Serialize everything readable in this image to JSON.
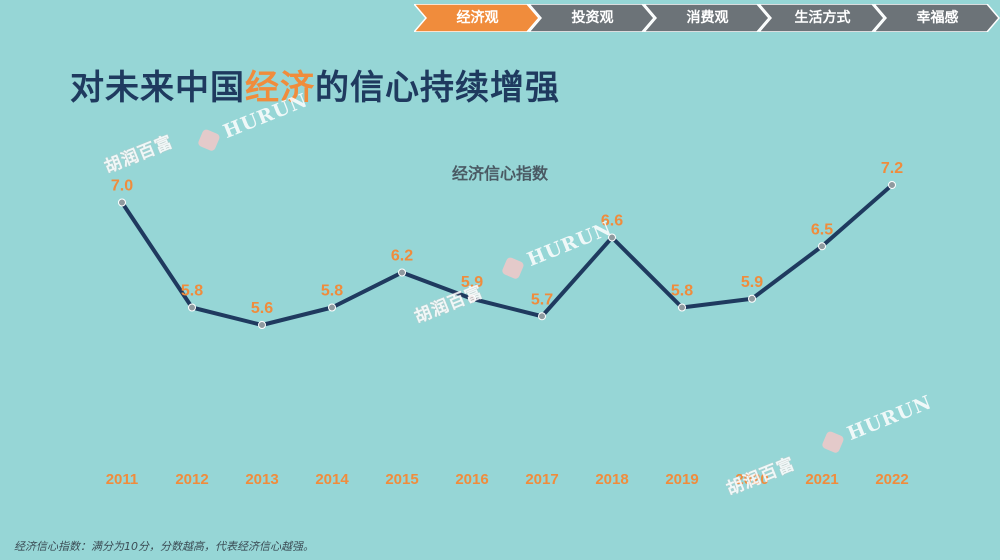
{
  "nav": {
    "tabs": [
      {
        "label": "经济观",
        "active": true
      },
      {
        "label": "投资观",
        "active": false
      },
      {
        "label": "消费观",
        "active": false
      },
      {
        "label": "生活方式",
        "active": false
      },
      {
        "label": "幸福感",
        "active": false
      }
    ],
    "active_color": "#f08c3c",
    "inactive_color": "#6c7378"
  },
  "headline": {
    "prefix": "对未来中国",
    "highlight": "经济",
    "suffix": "的信心持续增强"
  },
  "watermark": {
    "cn": "胡润百富",
    "en": "HURUN"
  },
  "chart_data": {
    "type": "line",
    "title": "经济信心指数",
    "categories": [
      "2011",
      "2012",
      "2013",
      "2014",
      "2015",
      "2016",
      "2017",
      "2018",
      "2019",
      "2020",
      "2021",
      "2022"
    ],
    "values": [
      7.0,
      5.8,
      5.6,
      5.8,
      6.2,
      5.9,
      5.7,
      6.6,
      5.8,
      5.9,
      6.5,
      7.2
    ],
    "data_labels": [
      "7.0",
      "5.8",
      "5.6",
      "5.8",
      "6.2",
      "5.9",
      "5.7",
      "6.6",
      "5.8",
      "5.9",
      "6.5",
      "7.2"
    ],
    "ylim": [
      4.0,
      8.0
    ],
    "grid": false,
    "line_color": "#1f3a5f",
    "label_color": "#f08c3c"
  },
  "footnote": "经济信心指数：满分为10分，分数越高，代表经济信心越强。"
}
